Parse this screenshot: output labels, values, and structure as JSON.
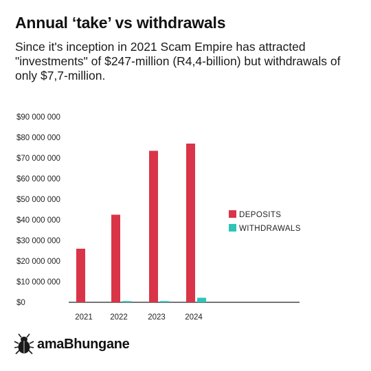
{
  "title": "Annual ‘take’ vs withdrawals",
  "subtitle": "Since it's inception in 2021 Scam Empire has attracted \"investments\" of $247-million (R4,4-billion) but withdrawals of only $7,7-million.",
  "brand": {
    "name": "amaBhungane",
    "icon": "dung-beetle-icon"
  },
  "chart_data": {
    "type": "bar",
    "categories": [
      "2021",
      "2022",
      "2023",
      "2024"
    ],
    "series": [
      {
        "name": "DEPOSITS",
        "color": "#d93448",
        "values": [
          26000000,
          42500000,
          73500000,
          77000000
        ]
      },
      {
        "name": "WITHDRAWALS",
        "color": "#2ec4b6",
        "values": [
          0,
          600000,
          600000,
          2200000
        ]
      }
    ],
    "yticks": [
      {
        "value": 0,
        "label": "$0"
      },
      {
        "value": 10000000,
        "label": "$10 000 000"
      },
      {
        "value": 20000000,
        "label": "$20 000 000"
      },
      {
        "value": 30000000,
        "label": "$30 000 000"
      },
      {
        "value": 40000000,
        "label": "$40 000 000"
      },
      {
        "value": 50000000,
        "label": "$50 000 000"
      },
      {
        "value": 60000000,
        "label": "$60 000 000"
      },
      {
        "value": 70000000,
        "label": "$70 000 000"
      },
      {
        "value": 80000000,
        "label": "$80 000 000"
      },
      {
        "value": 90000000,
        "label": "$90 000 000"
      }
    ],
    "ylim": [
      0,
      90000000
    ],
    "grid": false,
    "legend_position": "right"
  }
}
